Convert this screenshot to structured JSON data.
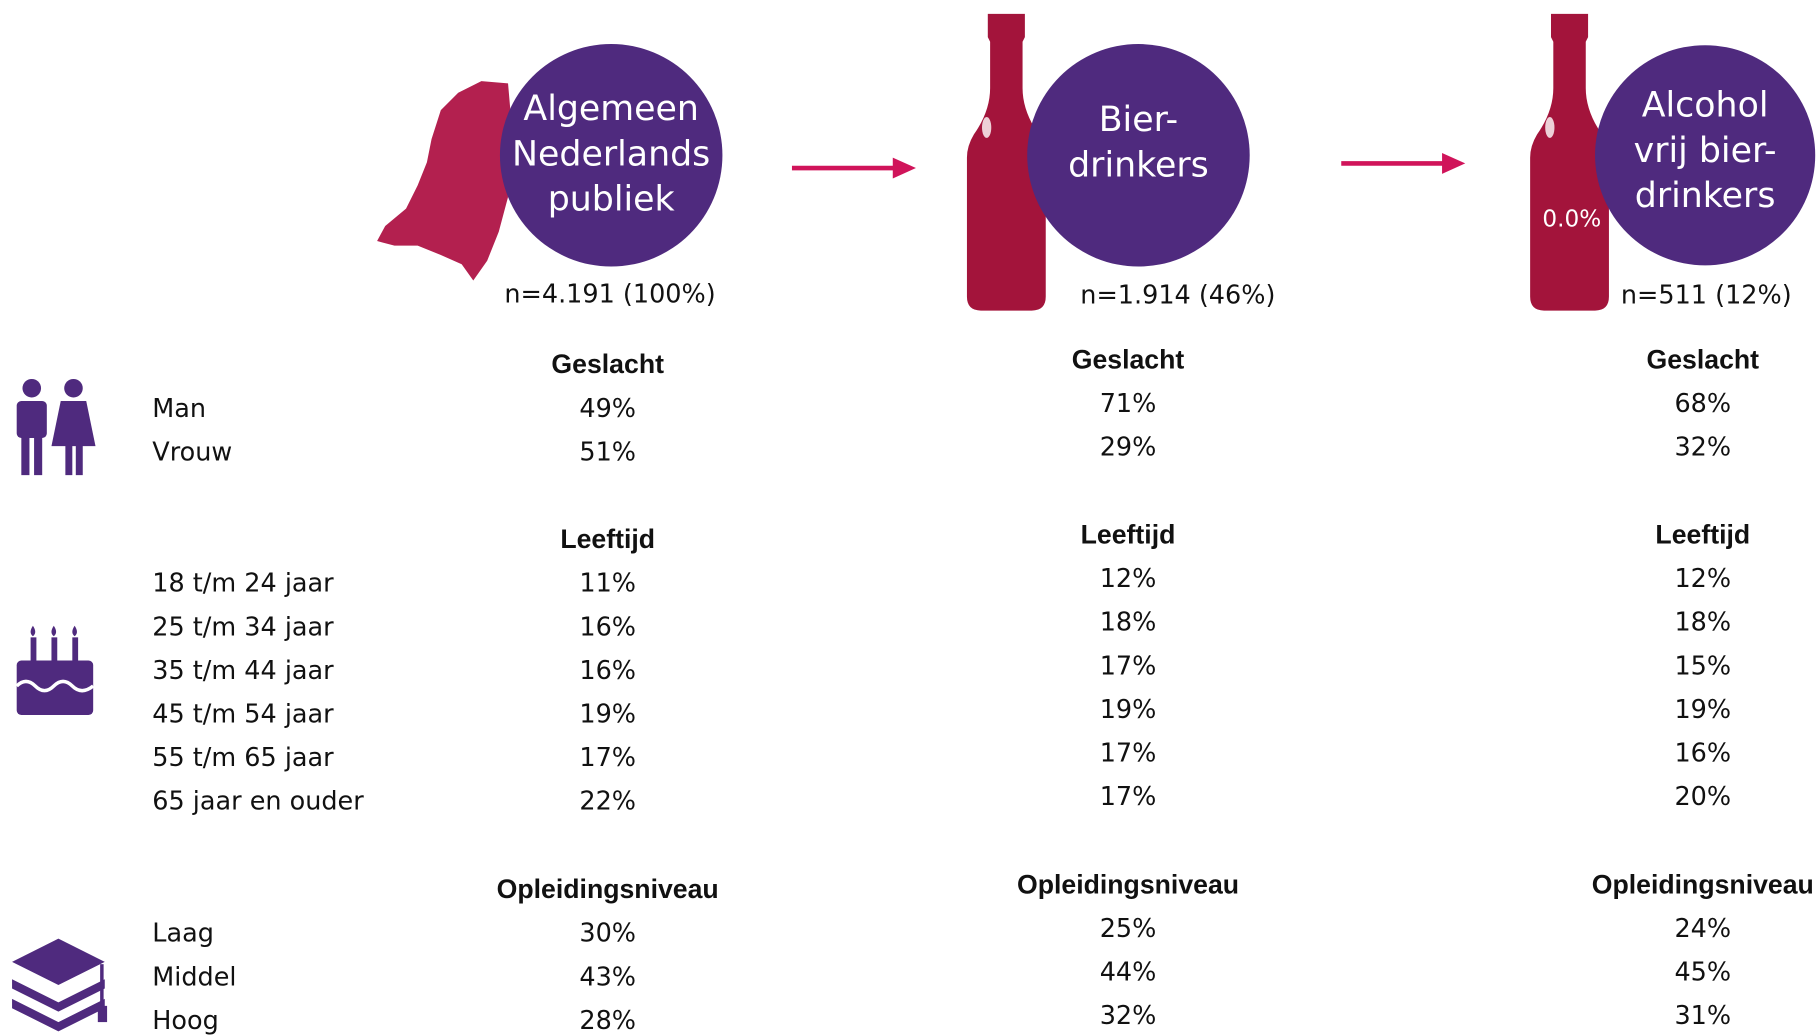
{
  "groups": [
    {
      "circle": [
        "Algemeen",
        "Nederlands",
        "publiek"
      ],
      "n": "n=4.191 (100%)"
    },
    {
      "circle": [
        "Bier-",
        "drinkers"
      ],
      "n": "n=1.914 (46%)"
    },
    {
      "circle": [
        "Alcohol",
        "vrij bier-",
        "drinkers"
      ],
      "n": "n=511 (12%)",
      "bottle_label": "0.0%"
    }
  ],
  "sections": [
    {
      "title": "Geslacht",
      "rows": [
        {
          "label": "Man",
          "values": [
            "49%",
            "71%",
            "68%"
          ]
        },
        {
          "label": "Vrouw",
          "values": [
            "51%",
            "29%",
            "32%"
          ]
        }
      ]
    },
    {
      "title": "Leeftijd",
      "rows": [
        {
          "label": "18 t/m 24 jaar",
          "values": [
            "11%",
            "12%",
            "12%"
          ]
        },
        {
          "label": "25 t/m 34 jaar",
          "values": [
            "16%",
            "18%",
            "18%"
          ]
        },
        {
          "label": "35 t/m 44 jaar",
          "values": [
            "16%",
            "17%",
            "15%"
          ]
        },
        {
          "label": "45 t/m 54 jaar",
          "values": [
            "19%",
            "19%",
            "19%"
          ]
        },
        {
          "label": "55 t/m 65 jaar",
          "values": [
            "17%",
            "17%",
            "16%"
          ]
        },
        {
          "label": "65 jaar en ouder",
          "values": [
            "22%",
            "17%",
            "20%"
          ]
        }
      ]
    },
    {
      "title": "Opleidingsniveau",
      "rows": [
        {
          "label": "Laag",
          "values": [
            "30%",
            "25%",
            "24%"
          ]
        },
        {
          "label": "Middel",
          "values": [
            "43%",
            "44%",
            "45%"
          ]
        },
        {
          "label": "Hoog",
          "values": [
            "28%",
            "32%",
            "31%"
          ]
        }
      ]
    }
  ]
}
